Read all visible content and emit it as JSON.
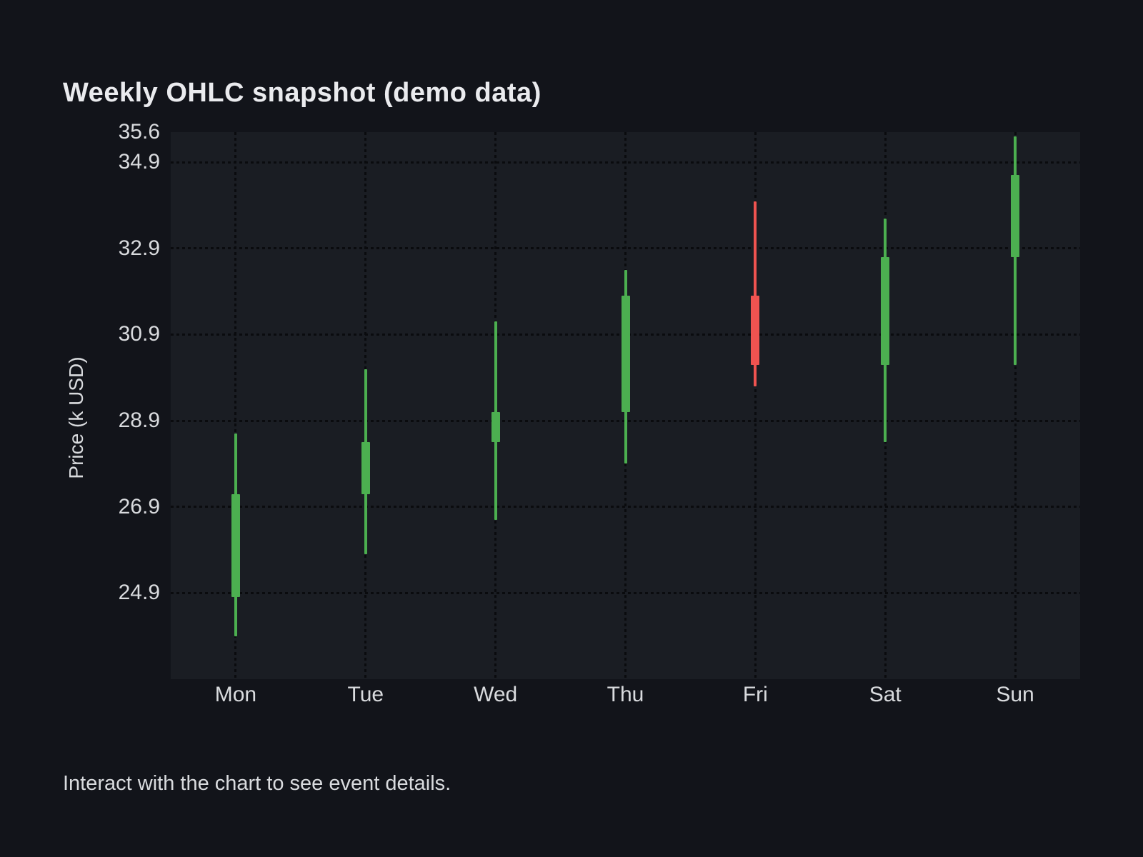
{
  "footer_hint": "Interact with the chart to see event details.",
  "colors": {
    "up": "#4caf50",
    "down": "#ef5350",
    "page_bg": "#12141a",
    "plot_bg": "#1a1d23",
    "grid": "#0a0b0e",
    "tick_text": "#d9dbde",
    "title_text": "#eaebee"
  },
  "chart_data": {
    "type": "candlestick",
    "title": "Weekly OHLC snapshot (demo data)",
    "ylabel": "Price (k USD)",
    "xlabel": "",
    "categories": [
      "Mon",
      "Tue",
      "Wed",
      "Thu",
      "Fri",
      "Sat",
      "Sun"
    ],
    "series": [
      {
        "name": "OHLC",
        "points": [
          {
            "day": "Mon",
            "open": 24.8,
            "high": 28.6,
            "low": 23.9,
            "close": 27.2,
            "direction": "up"
          },
          {
            "day": "Tue",
            "open": 27.2,
            "high": 30.1,
            "low": 25.8,
            "close": 28.4,
            "direction": "up"
          },
          {
            "day": "Wed",
            "open": 28.4,
            "high": 31.2,
            "low": 26.6,
            "close": 29.1,
            "direction": "up"
          },
          {
            "day": "Thu",
            "open": 29.1,
            "high": 32.4,
            "low": 27.9,
            "close": 31.8,
            "direction": "up"
          },
          {
            "day": "Fri",
            "open": 31.8,
            "high": 34.0,
            "low": 29.7,
            "close": 30.2,
            "direction": "down"
          },
          {
            "day": "Sat",
            "open": 30.2,
            "high": 33.6,
            "low": 28.4,
            "close": 32.7,
            "direction": "up"
          },
          {
            "day": "Sun",
            "open": 32.7,
            "high": 35.5,
            "low": 30.2,
            "close": 34.6,
            "direction": "up"
          }
        ]
      }
    ],
    "ylim": [
      22.9,
      35.6
    ],
    "yticks": [
      35.6,
      34.9,
      32.9,
      30.9,
      28.9,
      26.9,
      24.9
    ],
    "ytick_labels": [
      "35.6",
      "34.9",
      "32.9",
      "30.9",
      "28.9",
      "26.9",
      "24.9"
    ],
    "grid": "dotted",
    "legend_position": "none"
  }
}
